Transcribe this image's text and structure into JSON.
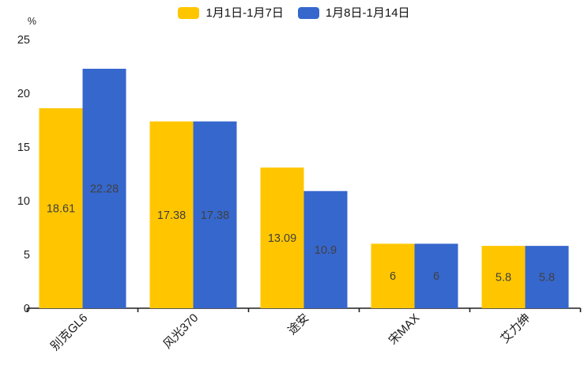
{
  "chart_data": {
    "type": "bar",
    "title": "",
    "ylabel": "%",
    "categories": [
      "别克GL6",
      "风光370",
      "途安",
      "宋MAX",
      "艾力绅"
    ],
    "series": [
      {
        "name": "1月1日-1月7日",
        "color": "#FFC600",
        "values": [
          18.61,
          17.38,
          13.09,
          6,
          5.8
        ]
      },
      {
        "name": "1月8日-1月14日",
        "color": "#3667CD",
        "values": [
          22.28,
          17.38,
          10.9,
          6,
          5.8
        ]
      }
    ],
    "value_labels": [
      "18.61",
      "17.38",
      "13.09",
      "6",
      "5.8",
      "22.28",
      "17.38",
      "10.9",
      "6",
      "5.8"
    ],
    "ylim": [
      0,
      25
    ],
    "yticks": [
      0,
      5,
      10,
      15,
      20,
      25
    ],
    "grid": false,
    "legend_position": "top-center",
    "value_label_position": "inside-center",
    "value_label_color": "#404040",
    "axis_color": "#1f1f1f",
    "xtick_label_color": "#1a1a1a",
    "background": "#ffffff",
    "xtick_rotation": 45
  }
}
